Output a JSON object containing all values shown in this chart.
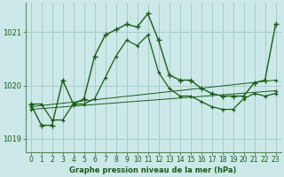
{
  "title": "Graphe pression niveau de la mer (hPa)",
  "background_color": "#cce8e8",
  "grid_color": "#a0c8c8",
  "line_color": "#1a5c1a",
  "xlim": [
    -0.5,
    23.5
  ],
  "ylim": [
    1018.75,
    1021.55
  ],
  "yticks": [
    1019,
    1020,
    1021
  ],
  "xticks": [
    0,
    1,
    2,
    3,
    4,
    5,
    6,
    7,
    8,
    9,
    10,
    11,
    12,
    13,
    14,
    15,
    16,
    17,
    18,
    19,
    20,
    21,
    22,
    23
  ],
  "series_peak_x": [
    0,
    1,
    2,
    3,
    4,
    5,
    6,
    7,
    8,
    9,
    10,
    11,
    12,
    13,
    14,
    15,
    16,
    17,
    18,
    19,
    20,
    21,
    22,
    23
  ],
  "series_peak_y": [
    1019.65,
    1019.25,
    1019.25,
    1020.1,
    1019.65,
    1019.75,
    1020.55,
    1020.95,
    1021.05,
    1021.15,
    1021.1,
    1021.35,
    1020.85,
    1020.2,
    1020.1,
    1020.1,
    1019.95,
    1019.85,
    1019.8,
    1019.8,
    1019.8,
    1020.05,
    1020.1,
    1021.15
  ],
  "series_mid_x": [
    0,
    1,
    2,
    3,
    4,
    5,
    6,
    7,
    8,
    9,
    10,
    11,
    12,
    13,
    14,
    15,
    16,
    17,
    18,
    19,
    20,
    21,
    22,
    23
  ],
  "series_mid_y": [
    1019.65,
    1019.65,
    1019.35,
    1019.35,
    1019.65,
    1019.65,
    1019.75,
    1020.15,
    1020.55,
    1020.85,
    1020.75,
    1020.95,
    1020.25,
    1019.95,
    1019.8,
    1019.8,
    1019.7,
    1019.6,
    1019.55,
    1019.55,
    1019.75,
    1019.85,
    1019.8,
    1019.85
  ],
  "series_line1_x": [
    0,
    23
  ],
  "series_line1_y": [
    1019.6,
    1020.1
  ],
  "series_line2_x": [
    0,
    23
  ],
  "series_line2_y": [
    1019.55,
    1019.9
  ]
}
